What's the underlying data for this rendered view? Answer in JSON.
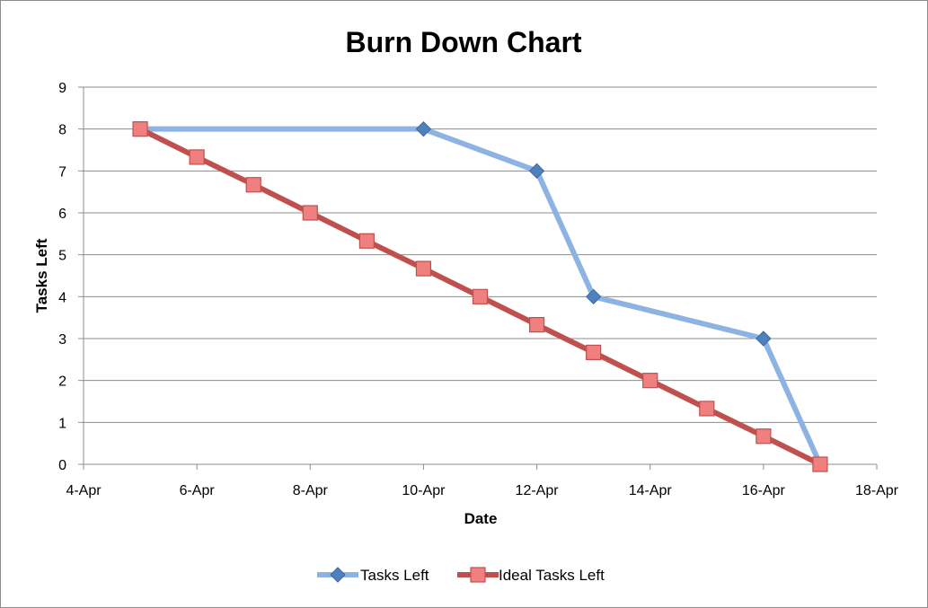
{
  "chart_data": {
    "type": "line",
    "title": "Burn Down Chart",
    "xlabel": "Date",
    "ylabel": "Tasks Left",
    "xlim": [
      "2000-04-04",
      "2000-04-18"
    ],
    "ylim": [
      0,
      9
    ],
    "x_tick_labels": [
      "4-Apr",
      "6-Apr",
      "8-Apr",
      "10-Apr",
      "12-Apr",
      "14-Apr",
      "16-Apr",
      "18-Apr"
    ],
    "y_tick_labels": [
      "0",
      "1",
      "2",
      "3",
      "4",
      "5",
      "6",
      "7",
      "8",
      "9"
    ],
    "grid": "horizontal",
    "legend_position": "bottom",
    "series": [
      {
        "name": "Tasks Left",
        "color": "#8db3e2",
        "marker_color": "#4f81bd",
        "marker": "diamond",
        "points": [
          {
            "x": "2000-04-05",
            "y": 8
          },
          {
            "x": "2000-04-10",
            "y": 8
          },
          {
            "x": "2000-04-12",
            "y": 7
          },
          {
            "x": "2000-04-13",
            "y": 4
          },
          {
            "x": "2000-04-16",
            "y": 3
          },
          {
            "x": "2000-04-17",
            "y": 0
          }
        ]
      },
      {
        "name": "Ideal Tasks Left",
        "color": "#c0504d",
        "marker_color": "#f08080",
        "marker": "square",
        "points": [
          {
            "x": "2000-04-05",
            "y": 8
          },
          {
            "x": "2000-04-06",
            "y": 7.33
          },
          {
            "x": "2000-04-07",
            "y": 6.67
          },
          {
            "x": "2000-04-08",
            "y": 6
          },
          {
            "x": "2000-04-09",
            "y": 5.33
          },
          {
            "x": "2000-04-10",
            "y": 4.67
          },
          {
            "x": "2000-04-11",
            "y": 4
          },
          {
            "x": "2000-04-12",
            "y": 3.33
          },
          {
            "x": "2000-04-13",
            "y": 2.67
          },
          {
            "x": "2000-04-14",
            "y": 2
          },
          {
            "x": "2000-04-15",
            "y": 1.33
          },
          {
            "x": "2000-04-16",
            "y": 0.67
          },
          {
            "x": "2000-04-17",
            "y": 0
          }
        ]
      }
    ]
  }
}
